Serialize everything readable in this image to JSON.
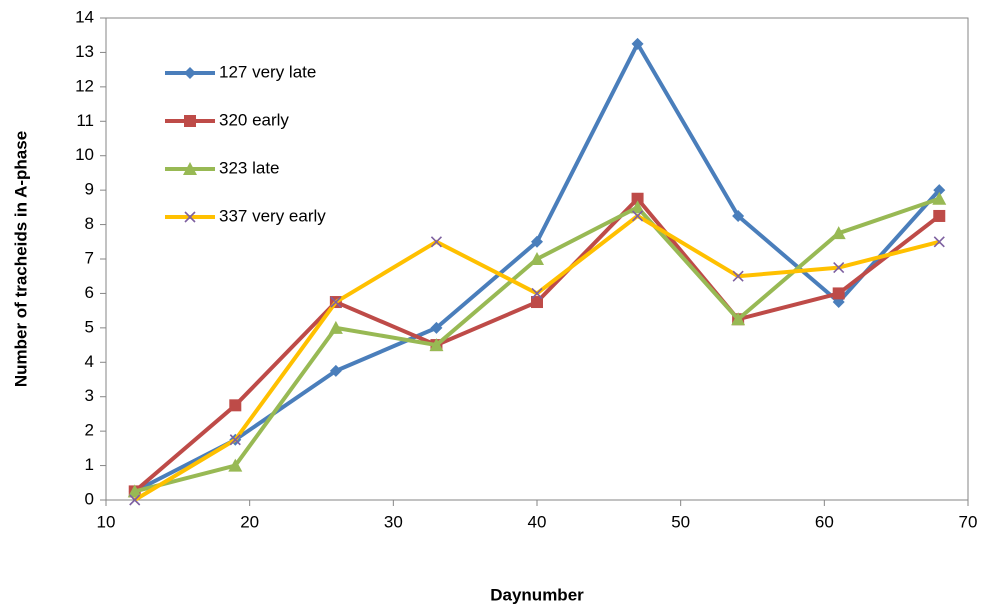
{
  "chart_data": {
    "type": "line",
    "x_label": "Daynumber",
    "y_label": "Number of tracheids in A-phase",
    "x": [
      12,
      19,
      26,
      33,
      40,
      47,
      54,
      61,
      68
    ],
    "series": [
      {
        "name": "127 very late",
        "color": "#4a7ebb",
        "marker": "diamond",
        "marker_color": "#4a7ebb",
        "values": [
          0.25,
          1.75,
          3.75,
          5,
          7.5,
          13.25,
          8.25,
          5.75,
          9
        ]
      },
      {
        "name": "320 early",
        "color": "#be4b48",
        "marker": "square",
        "marker_color": "#be4b48",
        "values": [
          0.25,
          2.75,
          5.75,
          4.5,
          5.75,
          8.75,
          5.25,
          6,
          8.25
        ]
      },
      {
        "name": "323 late",
        "color": "#98b954",
        "marker": "triangle",
        "marker_color": "#98b954",
        "values": [
          0.25,
          1,
          5,
          4.5,
          7,
          8.5,
          5.25,
          7.75,
          8.75
        ]
      },
      {
        "name": "337 very early",
        "color": "#ffc000",
        "marker": "x",
        "marker_color": "#7d60a0",
        "values": [
          0,
          1.75,
          5.75,
          7.5,
          6,
          8.25,
          6.5,
          6.75,
          7.5
        ]
      }
    ],
    "xlim": [
      10,
      70
    ],
    "xticks": [
      10,
      20,
      30,
      40,
      50,
      60,
      70
    ],
    "ylim": [
      0,
      14
    ],
    "yticks": [
      0,
      1,
      2,
      3,
      4,
      5,
      6,
      7,
      8,
      9,
      10,
      11,
      12,
      13,
      14
    ],
    "legend": "top-left",
    "grid": false
  }
}
